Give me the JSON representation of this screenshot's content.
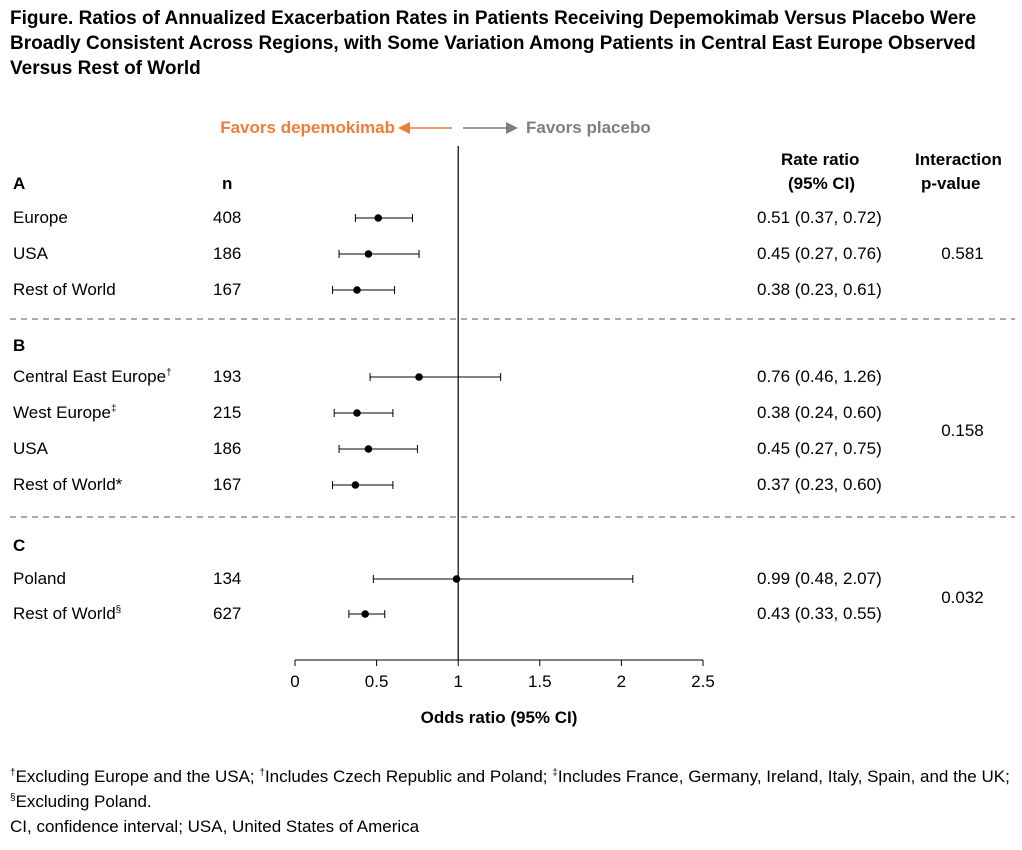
{
  "title": "Figure. Ratios of Annualized Exacerbation Rates in Patients Receiving Depemokimab Versus Placebo Were Broadly Consistent Across Regions, with Some Variation Among Patients in Central East Europe Observed Versus Rest of World",
  "favors_left": "Favors depemokimab",
  "favors_right": "Favors placebo",
  "header": {
    "n_label": "n",
    "rate_ratio_line1": "Rate ratio",
    "rate_ratio_line2": "(95% CI)",
    "interaction_line1": "Interaction",
    "interaction_line2": "p-value"
  },
  "colors": {
    "favors_depemokimab": "#ef7d3a",
    "favors_placebo": "#7f7f7f"
  },
  "chart_data": {
    "type": "scatter",
    "subtype": "forest plot",
    "xlabel": "Odds ratio (95% CI)",
    "xlim": [
      0,
      2.5
    ],
    "xticks": [
      0,
      0.5,
      1,
      1.5,
      2,
      2.5
    ],
    "xtick_labels": [
      "0",
      "0.5",
      "1",
      "1.5",
      "2",
      "2.5"
    ],
    "reference_line": 1,
    "groups": [
      {
        "label": "A",
        "interaction_p": "0.581",
        "rows": [
          {
            "name": "Europe",
            "sup": "",
            "n": "408",
            "ratio": 0.51,
            "lo": 0.37,
            "hi": 0.72,
            "ci_text": "0.51 (0.37, 0.72)"
          },
          {
            "name": "USA",
            "sup": "",
            "n": "186",
            "ratio": 0.45,
            "lo": 0.27,
            "hi": 0.76,
            "ci_text": "0.45 (0.27, 0.76)"
          },
          {
            "name": "Rest of World",
            "sup": "",
            "n": "167",
            "ratio": 0.38,
            "lo": 0.23,
            "hi": 0.61,
            "ci_text": "0.38 (0.23, 0.61)"
          }
        ]
      },
      {
        "label": "B",
        "interaction_p": "0.158",
        "rows": [
          {
            "name": "Central East Europe",
            "sup": "†",
            "n": "193",
            "ratio": 0.76,
            "lo": 0.46,
            "hi": 1.26,
            "ci_text": "0.76 (0.46, 1.26)"
          },
          {
            "name": "West Europe",
            "sup": "‡",
            "n": "215",
            "ratio": 0.38,
            "lo": 0.24,
            "hi": 0.6,
            "ci_text": "0.38 (0.24, 0.60)"
          },
          {
            "name": "USA",
            "sup": "",
            "n": "186",
            "ratio": 0.45,
            "lo": 0.27,
            "hi": 0.75,
            "ci_text": "0.45 (0.27, 0.75)"
          },
          {
            "name": "Rest of World*",
            "sup": "",
            "n": "167",
            "ratio": 0.37,
            "lo": 0.23,
            "hi": 0.6,
            "ci_text": "0.37 (0.23, 0.60)"
          }
        ]
      },
      {
        "label": "C",
        "interaction_p": "0.032",
        "rows": [
          {
            "name": "Poland",
            "sup": "",
            "n": "134",
            "ratio": 0.99,
            "lo": 0.48,
            "hi": 2.07,
            "ci_text": "0.99 (0.48, 2.07)"
          },
          {
            "name": "Rest of World",
            "sup": "§",
            "n": "627",
            "ratio": 0.43,
            "lo": 0.33,
            "hi": 0.55,
            "ci_text": "0.43 (0.33, 0.55)"
          }
        ]
      }
    ]
  },
  "footnotes": {
    "line1_sup1": "†",
    "line1_text1": "Excluding Europe and the USA; ",
    "line1_sup2": "†",
    "line1_text2": "Includes Czech Republic and Poland; ",
    "line1_sup3": "‡",
    "line1_text3": "Includes France, Germany, Ireland, Italy, Spain, and the UK; ",
    "line1_sup4": "§",
    "line1_text4": "Excluding Poland.",
    "line2": "CI, confidence interval; USA, United States of America"
  }
}
